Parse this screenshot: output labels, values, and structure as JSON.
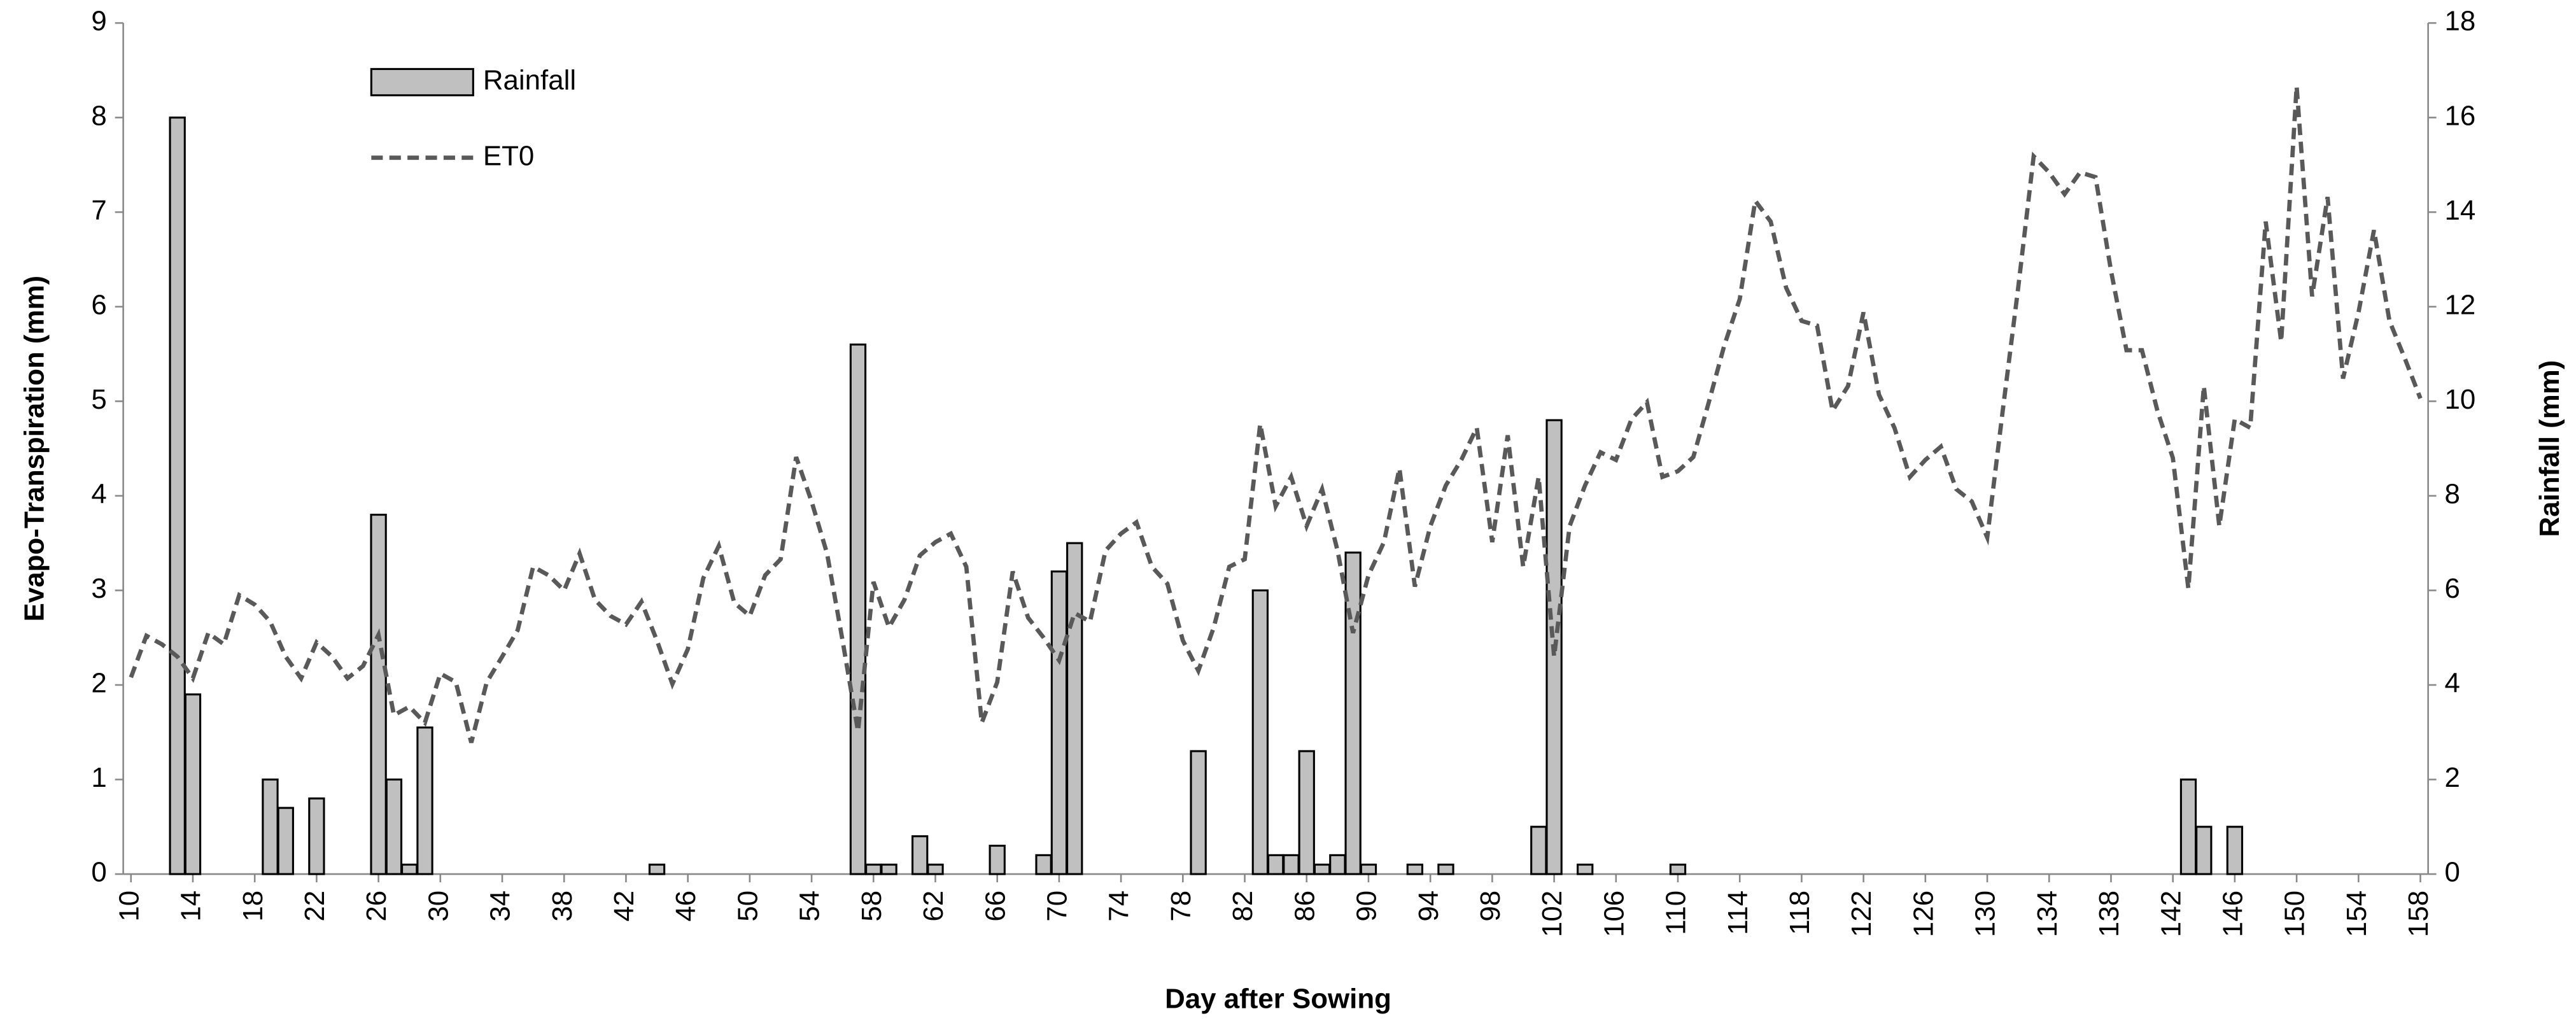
{
  "chart_data": {
    "type": "combo",
    "x_label": "Day after Sowing",
    "y_label": "Evapo-Transpiration  (mm)",
    "y2_label": "Rainfall  (mm)",
    "xlim": [
      9.5,
      158.5
    ],
    "xticks": [
      10,
      14,
      18,
      22,
      26,
      30,
      34,
      38,
      42,
      46,
      50,
      54,
      58,
      62,
      66,
      70,
      74,
      78,
      82,
      86,
      90,
      94,
      98,
      102,
      106,
      110,
      114,
      118,
      122,
      126,
      130,
      134,
      138,
      142,
      146,
      150,
      154,
      158
    ],
    "ylim": [
      0,
      9
    ],
    "yticks": [
      0,
      1,
      2,
      3,
      4,
      5,
      6,
      7,
      8,
      9
    ],
    "y2lim": [
      0,
      18
    ],
    "y2ticks": [
      0,
      2,
      4,
      6,
      8,
      10,
      12,
      14,
      16,
      18
    ],
    "legend": "top-left",
    "series": [
      {
        "name": "Rainfall",
        "type": "bar",
        "axis": "y2",
        "color": "#c0c0c0",
        "x": [
          13,
          14,
          19,
          20,
          22,
          26,
          27,
          28,
          29,
          44,
          57,
          58,
          59,
          61,
          62,
          66,
          69,
          70,
          71,
          79,
          83,
          84,
          85,
          86,
          87,
          88,
          89,
          90,
          93,
          95,
          101,
          102,
          104,
          110,
          143,
          144,
          146
        ],
        "values": [
          16,
          3.8,
          2,
          1.4,
          1.6,
          7.6,
          2,
          0.2,
          3.1,
          0.2,
          11.2,
          0.2,
          0.2,
          0.8,
          0.2,
          0.6,
          0.4,
          6.4,
          7,
          2.6,
          6,
          0.4,
          0.4,
          2.6,
          0.2,
          0.4,
          6.8,
          0.2,
          0.2,
          0.2,
          1,
          9.6,
          0.2,
          0.2,
          2,
          1,
          1
        ]
      },
      {
        "name": "ET0",
        "type": "line",
        "line_style": "dashed",
        "color": "#595959",
        "x": [
          10,
          11,
          12,
          13,
          14,
          15,
          16,
          17,
          18,
          19,
          20,
          21,
          22,
          23,
          24,
          25,
          26,
          27,
          28,
          29,
          30,
          31,
          32,
          33,
          34,
          35,
          36,
          37,
          38,
          39,
          40,
          41,
          42,
          43,
          44,
          45,
          46,
          47,
          48,
          49,
          50,
          51,
          52,
          53,
          54,
          55,
          56,
          57,
          58,
          59,
          60,
          61,
          62,
          63,
          64,
          65,
          66,
          67,
          68,
          69,
          70,
          71,
          72,
          73,
          74,
          75,
          76,
          77,
          78,
          79,
          80,
          81,
          82,
          83,
          84,
          85,
          86,
          87,
          88,
          89,
          90,
          91,
          92,
          93,
          94,
          95,
          96,
          97,
          98,
          99,
          100,
          101,
          102,
          103,
          104,
          105,
          106,
          107,
          108,
          109,
          110,
          111,
          112,
          113,
          114,
          115,
          116,
          117,
          118,
          119,
          120,
          121,
          122,
          123,
          124,
          125,
          126,
          127,
          128,
          129,
          130,
          131,
          132,
          133,
          134,
          135,
          136,
          137,
          138,
          139,
          140,
          141,
          142,
          143,
          144,
          145,
          146,
          147,
          148,
          149,
          150,
          151,
          152,
          153,
          154,
          155,
          156,
          157,
          158
        ],
        "values": [
          2.08,
          2.52,
          2.43,
          2.3,
          2.07,
          2.55,
          2.43,
          2.95,
          2.85,
          2.67,
          2.3,
          2.07,
          2.45,
          2.3,
          2.07,
          2.2,
          2.53,
          1.68,
          1.77,
          1.6,
          2.12,
          2.03,
          1.39,
          2.03,
          2.3,
          2.58,
          3.25,
          3.16,
          3.0,
          3.39,
          2.9,
          2.73,
          2.64,
          2.88,
          2.47,
          2.01,
          2.38,
          3.13,
          3.47,
          2.87,
          2.73,
          3.16,
          3.33,
          4.41,
          3.94,
          3.39,
          2.47,
          1.51,
          3.09,
          2.61,
          2.9,
          3.37,
          3.51,
          3.6,
          3.25,
          1.6,
          2.03,
          3.2,
          2.71,
          2.5,
          2.26,
          2.76,
          2.67,
          3.42,
          3.6,
          3.72,
          3.25,
          3.07,
          2.47,
          2.15,
          2.61,
          3.25,
          3.33,
          4.76,
          3.89,
          4.2,
          3.68,
          4.07,
          3.42,
          2.55,
          3.16,
          3.51,
          4.29,
          3.04,
          3.68,
          4.11,
          4.38,
          4.72,
          3.51,
          4.64,
          3.25,
          4.2,
          2.3,
          3.68,
          4.11,
          4.46,
          4.38,
          4.81,
          4.99,
          4.2,
          4.26,
          4.41,
          4.99,
          5.59,
          6.08,
          7.12,
          6.9,
          6.2,
          5.85,
          5.8,
          4.9,
          5.16,
          5.94,
          5.07,
          4.72,
          4.2,
          4.38,
          4.52,
          4.07,
          3.94,
          3.56,
          4.9,
          6.2,
          7.59,
          7.42,
          7.19,
          7.42,
          7.37,
          6.38,
          5.54,
          5.54,
          4.9,
          4.4,
          3.02,
          5.16,
          3.68,
          4.81,
          4.72,
          6.9,
          5.63,
          8.33,
          6.11,
          7.16,
          5.24,
          5.94,
          6.81,
          5.85,
          5.45,
          5.03
        ]
      }
    ]
  }
}
